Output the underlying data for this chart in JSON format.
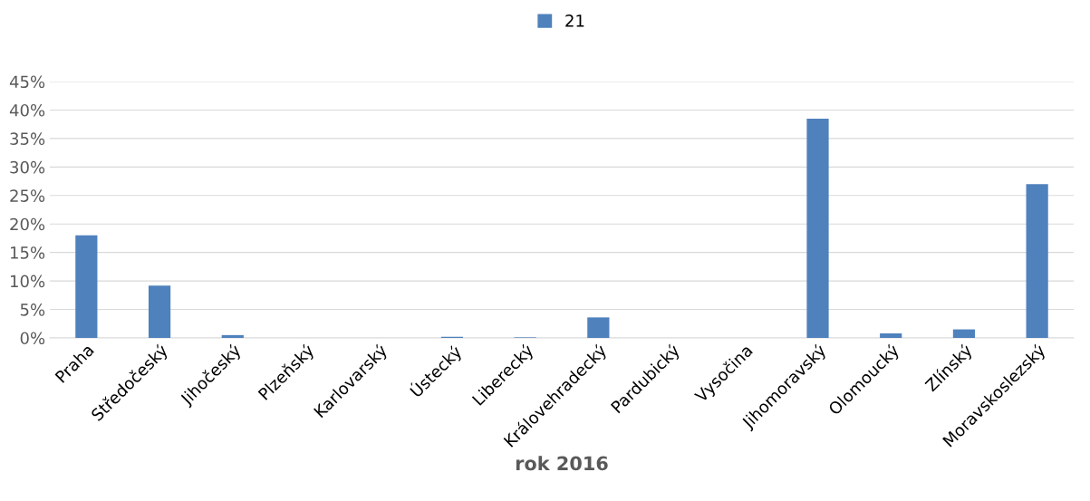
{
  "chart_data": {
    "type": "bar",
    "xlabel": "rok 2016",
    "categories": [
      "Praha",
      "Středočeský",
      "Jihočeský",
      "Plzeňský",
      "Karlovarský",
      "Ústecký",
      "Liberecký",
      "Královehradecký",
      "Pardubický",
      "Vysočina",
      "Jihomoravský",
      "Olomoucký",
      "Zlínský",
      "Moravskoslezský"
    ],
    "series": [
      {
        "name": "21",
        "color": "#4f81bd",
        "values": [
          18,
          9.2,
          0.5,
          0,
          0,
          0.2,
          0.1,
          3.6,
          0,
          0,
          38.5,
          0.8,
          1.5,
          27
        ]
      }
    ],
    "ylim": [
      0,
      45
    ],
    "yticks": [
      {
        "value": 0,
        "label": "0%"
      },
      {
        "value": 5,
        "label": "5%"
      },
      {
        "value": 10,
        "label": "10%"
      },
      {
        "value": 15,
        "label": "15%"
      },
      {
        "value": 20,
        "label": "20%"
      },
      {
        "value": 25,
        "label": "25%"
      },
      {
        "value": 30,
        "label": "30%"
      },
      {
        "value": 35,
        "label": "35%"
      },
      {
        "value": 40,
        "label": "40%"
      },
      {
        "value": 45,
        "label": "45%"
      }
    ],
    "grid": "y",
    "legend": "top"
  }
}
